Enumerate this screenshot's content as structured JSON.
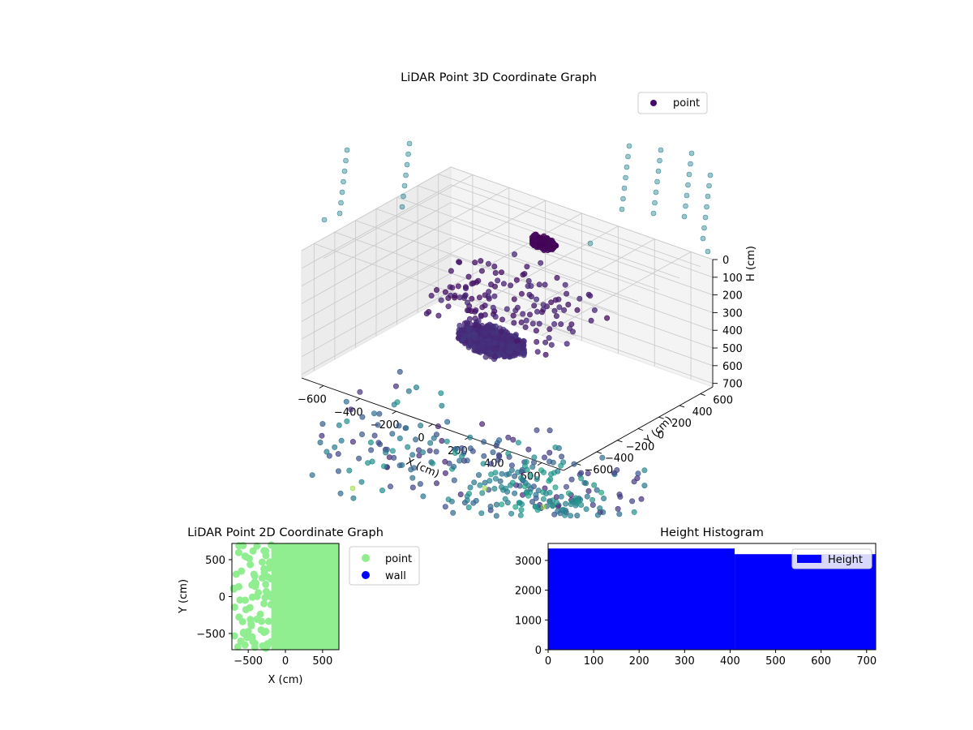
{
  "chart_data": [
    {
      "type": "scatter3d",
      "title": "LiDAR Point 3D Coordinate Graph",
      "xlabel": "X (cm)",
      "ylabel": "Y (cm)",
      "zlabel": "H (cm)",
      "x_ticks": [
        -600,
        -400,
        -200,
        0,
        200,
        400,
        600
      ],
      "y_ticks": [
        -600,
        -400,
        -200,
        0,
        200,
        400,
        600
      ],
      "z_ticks": [
        0,
        100,
        200,
        300,
        400,
        500,
        600,
        700
      ],
      "xlim": [
        -720,
        720
      ],
      "ylim": [
        -720,
        720
      ],
      "zlim": [
        0,
        720
      ],
      "z_inverted": true,
      "legend": {
        "entries": [
          "point"
        ],
        "placement": "upper-right"
      },
      "colormap": "viridis",
      "clusters": [
        {
          "x": -120,
          "y": 560,
          "h": 160,
          "spread": 50
        },
        {
          "x": -120,
          "y": 60,
          "h": 550,
          "spread": 130
        }
      ],
      "grid": true
    },
    {
      "type": "scatter",
      "title": "LiDAR Point 2D Coordinate Graph",
      "xlabel": "X (cm)",
      "ylabel": "Y (cm)",
      "x_ticks": [
        -500,
        0,
        500
      ],
      "y_ticks": [
        -500,
        0,
        500
      ],
      "xlim": [
        -720,
        720
      ],
      "ylim": [
        -720,
        720
      ],
      "series": [
        {
          "name": "point",
          "color": "#90ee90"
        },
        {
          "name": "wall",
          "color": "#0000ff"
        }
      ],
      "legend": {
        "placement": "outside-right"
      }
    },
    {
      "type": "bar",
      "title": "Height Histogram",
      "xlabel": "",
      "ylabel": "",
      "x_ticks": [
        0,
        100,
        200,
        300,
        400,
        500,
        600,
        700
      ],
      "y_ticks": [
        0,
        1000,
        2000,
        3000
      ],
      "xlim": [
        0,
        720
      ],
      "ylim": [
        0,
        3570
      ],
      "bins": [
        {
          "from": 0,
          "to": 410,
          "count": 3400
        },
        {
          "from": 410,
          "to": 720,
          "count": 3210
        }
      ],
      "series": [
        {
          "name": "Height",
          "color": "#0000ff"
        }
      ],
      "legend": {
        "placement": "upper-right"
      }
    }
  ]
}
